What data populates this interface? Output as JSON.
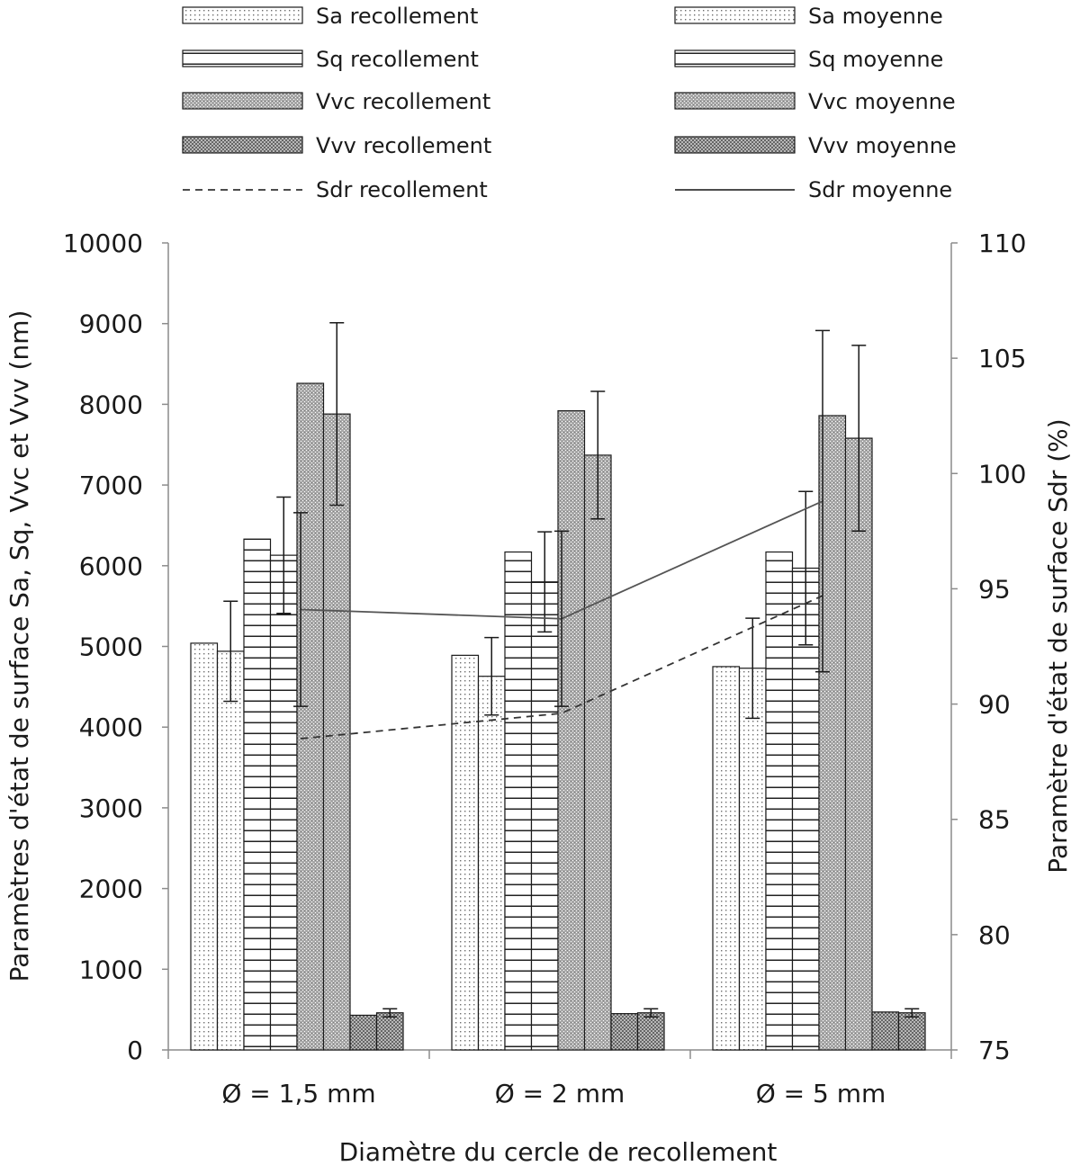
{
  "chart_data": {
    "type": "bar",
    "title": "",
    "xlabel": "Diamètre du cercle de recollement",
    "ylabel": "Paramètres d'état de surface Sa, Sq, Vvc et Vvv (nm)",
    "y2label": "Paramètre d'état de surface Sdr (%)",
    "categories": [
      "Ø = 1,5 mm",
      "Ø = 2 mm",
      "Ø = 5 mm"
    ],
    "ylim": [
      0,
      10000
    ],
    "yticks": [
      0,
      1000,
      2000,
      3000,
      4000,
      5000,
      6000,
      7000,
      8000,
      9000,
      10000
    ],
    "y2lim": [
      75,
      110
    ],
    "y2ticks": [
      75,
      80,
      85,
      90,
      95,
      100,
      105,
      110
    ],
    "grid": false,
    "legend_position": "top",
    "series": [
      {
        "name": "Sa recollement",
        "kind": "bar",
        "pattern": "dots",
        "values": [
          5040,
          4890,
          4750
        ],
        "errors": [
          null,
          null,
          null
        ]
      },
      {
        "name": "Sa moyenne",
        "kind": "bar",
        "pattern": "dots",
        "values": [
          4940,
          4630,
          4730
        ],
        "errors": [
          620,
          480,
          620
        ]
      },
      {
        "name": "Sq recollement",
        "kind": "bar",
        "pattern": "hlines",
        "values": [
          6330,
          6170,
          6170
        ],
        "errors": [
          null,
          null,
          null
        ]
      },
      {
        "name": "Sq moyenne",
        "kind": "bar",
        "pattern": "hlines",
        "values": [
          6130,
          5800,
          5970
        ],
        "errors": [
          720,
          620,
          950
        ]
      },
      {
        "name": "Vvc recollement",
        "kind": "bar",
        "pattern": "stipple",
        "values": [
          8260,
          7920,
          7860
        ],
        "errors": [
          null,
          null,
          null
        ]
      },
      {
        "name": "Vvc moyenne",
        "kind": "bar",
        "pattern": "stipple",
        "values": [
          7880,
          7370,
          7580
        ],
        "errors": [
          1130,
          790,
          1150
        ]
      },
      {
        "name": "Vvv recollement",
        "kind": "bar",
        "pattern": "cross",
        "values": [
          430,
          450,
          470
        ],
        "errors": [
          null,
          null,
          null
        ]
      },
      {
        "name": "Vvv moyenne",
        "kind": "bar",
        "pattern": "cross",
        "values": [
          460,
          460,
          460
        ],
        "errors": [
          50,
          50,
          50
        ]
      },
      {
        "name": "Sdr recollement",
        "kind": "line",
        "style": "dashed",
        "axis": "right",
        "values": [
          88.5,
          89.6,
          94.7
        ],
        "errors": [
          null,
          null,
          null
        ]
      },
      {
        "name": "Sdr moyenne",
        "kind": "line",
        "style": "solid",
        "axis": "right",
        "values": [
          94.1,
          93.7,
          98.8
        ],
        "errors": [
          4.2,
          3.8,
          7.4
        ]
      }
    ]
  }
}
